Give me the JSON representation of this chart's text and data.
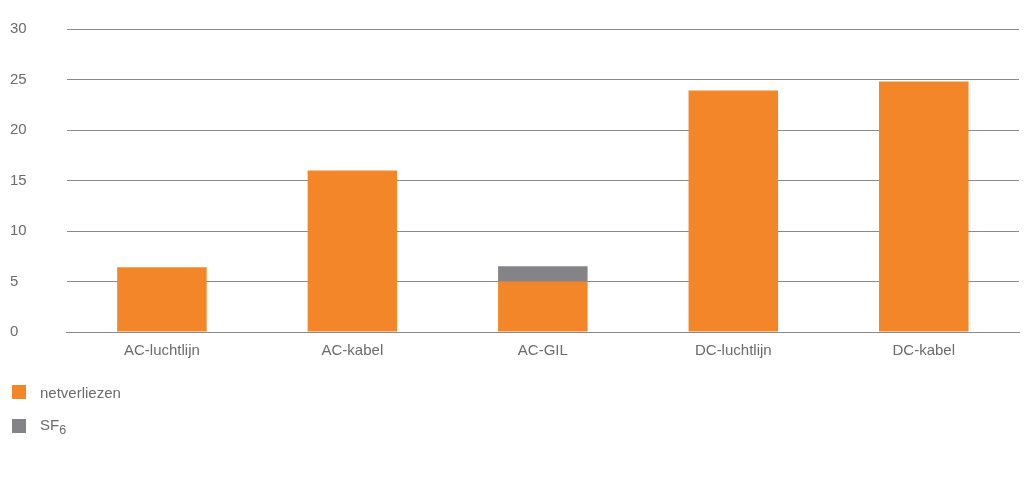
{
  "chart_data": {
    "type": "bar",
    "stacked": true,
    "categories": [
      "AC-luchtlijn",
      "AC-kabel",
      "AC-GIL",
      "DC-luchtlijn",
      "DC-kabel"
    ],
    "series": [
      {
        "name": "netverliezen",
        "color": "#f4862a",
        "values": [
          6.4,
          16,
          5,
          23.9,
          24.8
        ]
      },
      {
        "name": "SF$_{6}$",
        "color": "#848487",
        "values": [
          null,
          null,
          1.5,
          null,
          null
        ]
      }
    ],
    "ylim": [
      0,
      30
    ],
    "yticks": [
      0,
      5,
      10,
      15,
      20,
      25,
      30
    ],
    "grid": "y",
    "legend": "bottom left"
  }
}
